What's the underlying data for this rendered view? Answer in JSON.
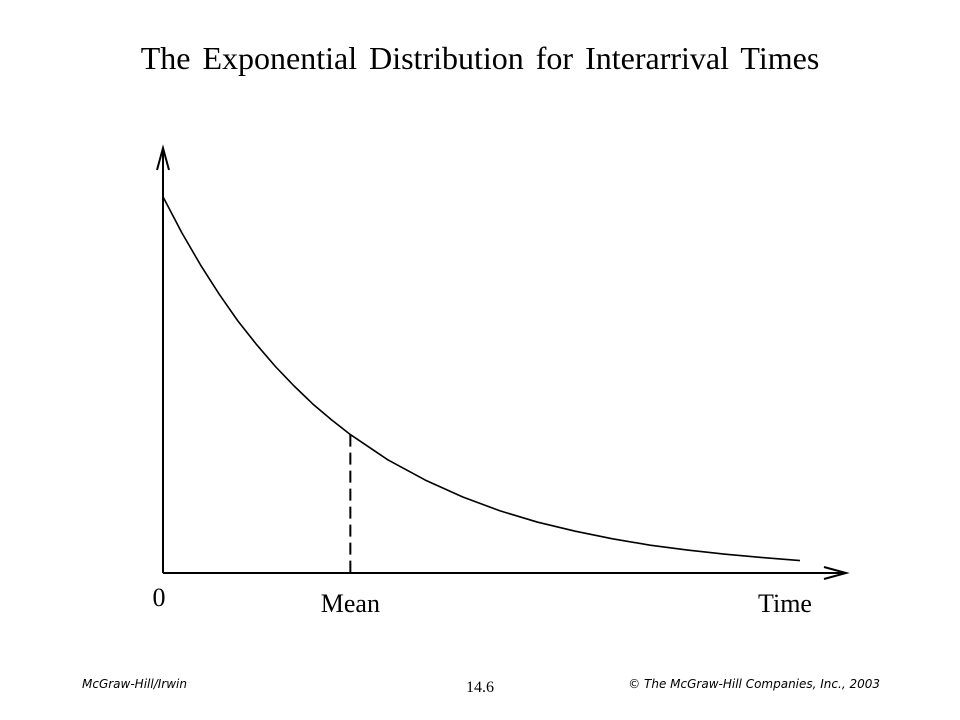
{
  "slide": {
    "title": "The Exponential Distribution for Interarrival Times",
    "footer_left": "McGraw-Hill/Irwin",
    "slide_number": "14.6",
    "footer_right": "© The McGraw-Hill Companies, Inc., 2003"
  },
  "chart_data": {
    "type": "line",
    "title": "The Exponential Distribution for Interarrival Times",
    "xlabel": "Time",
    "ylabel": "",
    "tick_labels": {
      "origin": "0",
      "mean": "Mean"
    },
    "mean": 1,
    "xlim": [
      0,
      3.4
    ],
    "ylim": [
      0,
      1.05
    ],
    "grid": false,
    "legend": "none",
    "series": [
      {
        "x": [
          0,
          0.1,
          0.2,
          0.3,
          0.4,
          0.5,
          0.6,
          0.7,
          0.8,
          0.9,
          1.0,
          1.2,
          1.4,
          1.6,
          1.8,
          2.0,
          2.2,
          2.4,
          2.6,
          2.8,
          3.0,
          3.2,
          3.4
        ],
        "y": [
          1.0,
          0.905,
          0.819,
          0.741,
          0.67,
          0.607,
          0.549,
          0.497,
          0.449,
          0.407,
          0.368,
          0.301,
          0.247,
          0.202,
          0.165,
          0.135,
          0.111,
          0.091,
          0.074,
          0.061,
          0.05,
          0.041,
          0.033
        ]
      }
    ],
    "colors": {
      "curve": "#000000",
      "axis": "#000000",
      "mean_line": "#000000"
    }
  }
}
